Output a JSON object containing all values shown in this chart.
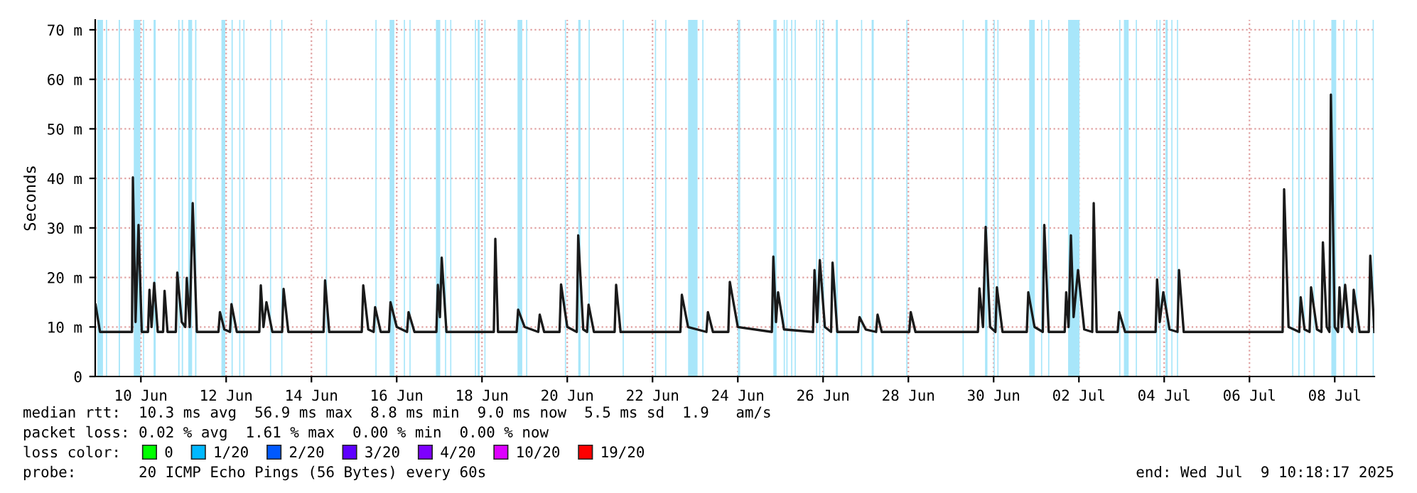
{
  "chart_data": {
    "type": "line",
    "ylabel": "Seconds",
    "legend_title": "loss color:",
    "legend": "bottom left",
    "grid": true,
    "line_style": "solid",
    "xlim": [
      "2025-06-09T10:18",
      "2025-07-09T10:18"
    ],
    "xticks": [
      {
        "value": "2025-06-10T12:00",
        "label": "10 Jun"
      },
      {
        "value": "2025-06-12T12:00",
        "label": "12 Jun"
      },
      {
        "value": "2025-06-14T12:00",
        "label": "14 Jun"
      },
      {
        "value": "2025-06-16T12:00",
        "label": "16 Jun"
      },
      {
        "value": "2025-06-18T12:00",
        "label": "18 Jun"
      },
      {
        "value": "2025-06-20T12:00",
        "label": "20 Jun"
      },
      {
        "value": "2025-06-22T12:00",
        "label": "22 Jun"
      },
      {
        "value": "2025-06-24T12:00",
        "label": "24 Jun"
      },
      {
        "value": "2025-06-26T12:00",
        "label": "26 Jun"
      },
      {
        "value": "2025-06-28T12:00",
        "label": "28 Jun"
      },
      {
        "value": "2025-06-30T12:00",
        "label": "30 Jun"
      },
      {
        "value": "2025-07-02T12:00",
        "label": "02 Jul"
      },
      {
        "value": "2025-07-04T12:00",
        "label": "04 Jul"
      },
      {
        "value": "2025-07-06T12:00",
        "label": "06 Jul"
      },
      {
        "value": "2025-07-08T12:00",
        "label": "08 Jul"
      }
    ],
    "ylim": [
      0,
      72
    ],
    "yticks": [
      0,
      {
        "value": 10,
        "label": "10 m"
      },
      {
        "value": 20,
        "label": "20 m"
      },
      {
        "value": 30,
        "label": "30 m"
      },
      {
        "value": 40,
        "label": "40 m"
      },
      {
        "value": 50,
        "label": "50 m"
      },
      {
        "value": 60,
        "label": "60 m"
      },
      {
        "value": 70,
        "label": "70 m"
      }
    ],
    "series": [
      {
        "color": "#1a1a1a",
        "x": [
          "2025-06-09T10:30",
          "2025-06-09T13:00",
          "2025-06-10T07:00",
          "2025-06-10T07:30",
          "2025-06-10T09:00",
          "2025-06-10T10:40",
          "2025-06-10T12:30",
          "2025-06-10T16:00",
          "2025-06-10T16:50",
          "2025-06-10T18:00",
          "2025-06-10T19:30",
          "2025-06-10T21:30",
          "2025-06-11T00:30",
          "2025-06-11T01:20",
          "2025-06-11T03:00",
          "2025-06-11T07:40",
          "2025-06-11T08:30",
          "2025-06-11T11:00",
          "2025-06-11T13:00",
          "2025-06-11T13:50",
          "2025-06-11T15:30",
          "2025-06-11T17:10",
          "2025-06-11T19:30",
          "2025-06-12T07:40",
          "2025-06-12T08:30",
          "2025-06-12T11:00",
          "2025-06-12T14:10",
          "2025-06-12T15:00",
          "2025-06-12T18:00",
          "2025-06-13T06:40",
          "2025-06-13T07:30",
          "2025-06-13T09:00",
          "2025-06-13T10:40",
          "2025-06-13T14:00",
          "2025-06-13T19:30",
          "2025-06-13T20:20",
          "2025-06-13T23:00",
          "2025-06-14T18:50",
          "2025-06-14T19:40",
          "2025-06-14T22:00",
          "2025-06-15T16:20",
          "2025-06-15T17:10",
          "2025-06-15T20:00",
          "2025-06-15T23:00",
          "2025-06-15T23:50",
          "2025-06-16T03:00",
          "2025-06-16T07:40",
          "2025-06-16T08:30",
          "2025-06-16T12:00",
          "2025-06-16T17:50",
          "2025-06-16T18:40",
          "2025-06-16T22:00",
          "2025-06-17T10:20",
          "2025-06-17T11:10",
          "2025-06-17T12:20",
          "2025-06-17T13:20",
          "2025-06-17T16:00",
          "2025-06-18T18:40",
          "2025-06-18T19:30",
          "2025-06-18T21:00",
          "2025-06-19T07:30",
          "2025-06-19T08:20",
          "2025-06-19T12:00",
          "2025-06-19T19:40",
          "2025-06-19T20:30",
          "2025-06-19T23:00",
          "2025-06-20T07:40",
          "2025-06-20T08:30",
          "2025-06-20T12:00",
          "2025-06-20T17:20",
          "2025-06-20T18:10",
          "2025-06-20T21:00",
          "2025-06-20T23:10",
          "2025-06-21T00:00",
          "2025-06-21T03:00",
          "2025-06-21T14:40",
          "2025-06-21T15:30",
          "2025-06-21T18:00",
          "2025-06-23T03:40",
          "2025-06-23T04:30",
          "2025-06-23T08:00",
          "2025-06-23T18:20",
          "2025-06-23T19:10",
          "2025-06-23T22:00",
          "2025-06-24T06:40",
          "2025-06-24T07:30",
          "2025-06-24T12:00",
          "2025-06-25T07:10",
          "2025-06-25T08:00",
          "2025-06-25T09:30",
          "2025-06-25T10:40",
          "2025-06-25T14:00",
          "2025-06-26T06:20",
          "2025-06-26T07:10",
          "2025-06-26T08:40",
          "2025-06-26T10:10",
          "2025-06-26T13:00",
          "2025-06-26T16:30",
          "2025-06-26T17:20",
          "2025-06-26T20:00",
          "2025-06-27T07:40",
          "2025-06-27T08:30",
          "2025-06-27T12:00",
          "2025-06-27T17:50",
          "2025-06-27T18:40",
          "2025-06-27T21:00",
          "2025-06-28T12:30",
          "2025-06-28T13:20",
          "2025-06-28T16:00",
          "2025-06-30T03:10",
          "2025-06-30T04:00",
          "2025-06-30T06:00",
          "2025-06-30T07:30",
          "2025-06-30T10:00",
          "2025-06-30T13:00",
          "2025-06-30T13:50",
          "2025-06-30T17:00",
          "2025-07-01T06:40",
          "2025-07-01T07:30",
          "2025-07-01T11:00",
          "2025-07-01T15:40",
          "2025-07-01T16:30",
          "2025-07-01T19:00",
          "2025-07-02T04:00",
          "2025-07-02T04:50",
          "2025-07-02T06:10",
          "2025-07-02T07:30",
          "2025-07-02T09:00",
          "2025-07-02T11:30",
          "2025-07-02T15:00",
          "2025-07-02T19:30",
          "2025-07-02T20:20",
          "2025-07-02T22:00",
          "2025-07-03T09:50",
          "2025-07-03T10:40",
          "2025-07-03T14:00",
          "2025-07-04T07:10",
          "2025-07-04T08:00",
          "2025-07-04T09:30",
          "2025-07-04T11:30",
          "2025-07-04T15:00",
          "2025-07-04T19:30",
          "2025-07-04T20:20",
          "2025-07-04T23:00",
          "2025-07-07T06:40",
          "2025-07-07T07:30",
          "2025-07-07T10:00",
          "2025-07-07T16:00",
          "2025-07-07T16:50",
          "2025-07-07T19:00",
          "2025-07-07T21:50",
          "2025-07-07T22:40",
          "2025-07-08T02:00",
          "2025-07-08T04:30",
          "2025-07-08T05:20",
          "2025-07-08T07:30",
          "2025-07-08T09:00",
          "2025-07-08T09:50",
          "2025-07-08T12:00",
          "2025-07-08T13:50",
          "2025-07-08T14:40",
          "2025-07-08T16:00",
          "2025-07-08T17:50",
          "2025-07-08T20:00",
          "2025-07-08T21:50",
          "2025-07-08T22:40",
          "2025-07-09T02:00",
          "2025-07-09T07:10",
          "2025-07-09T08:00",
          "2025-07-09T10:18"
        ],
        "values": [
          14.5,
          9,
          9,
          40.2,
          11,
          30.6,
          9,
          9,
          17.5,
          10,
          18.9,
          9,
          9,
          17.3,
          9,
          9,
          21,
          11,
          10,
          19.9,
          10,
          35,
          9,
          9,
          13,
          9.5,
          9,
          14.6,
          9,
          9,
          18.4,
          10,
          15,
          9,
          9,
          17.7,
          9,
          9,
          19.4,
          9,
          9,
          18.4,
          9.5,
          9,
          14,
          9,
          9,
          15,
          10,
          9,
          13,
          9,
          9,
          18.5,
          12,
          24,
          9,
          9,
          27.8,
          9,
          9,
          13.5,
          10,
          9,
          12.5,
          9,
          9,
          18.6,
          10,
          9,
          28.5,
          9.5,
          9,
          14.5,
          9,
          9,
          18.5,
          9,
          9,
          16.5,
          10,
          9,
          13,
          9,
          9,
          19.1,
          10,
          9,
          24.2,
          11,
          17,
          9.5,
          9,
          21.5,
          11,
          23.5,
          10,
          9,
          23,
          9,
          9,
          12,
          9.5,
          9,
          12.5,
          9,
          9,
          13,
          9,
          9,
          17.8,
          10,
          30.2,
          10,
          9,
          18,
          9,
          9,
          17,
          10,
          9,
          30.6,
          9,
          9,
          17,
          10,
          28.5,
          12,
          21.5,
          9.5,
          9,
          35,
          9,
          9,
          13,
          9,
          9,
          19.6,
          11,
          17,
          9.5,
          9,
          21.5,
          9,
          9,
          37.8,
          10,
          9,
          16,
          9.5,
          9,
          18,
          9.5,
          9,
          27.1,
          10,
          9,
          56.9,
          10,
          9,
          18,
          10,
          18.5,
          10,
          9,
          17.5,
          9,
          9,
          24.4,
          9.0
        ]
      },
      {
        "type": "scatter",
        "name": "0",
        "color": "#00ff00"
      },
      {
        "type": "scatter",
        "name": "1/20",
        "color": "#00b8ff"
      },
      {
        "type": "scatter",
        "name": "2/20",
        "color": "#0059ff"
      },
      {
        "type": "scatter",
        "name": "3/20",
        "color": "#5e00ff"
      },
      {
        "type": "scatter",
        "name": "4/20",
        "color": "#7e00ff"
      },
      {
        "type": "scatter",
        "name": "10/20",
        "color": "#dd00ff"
      },
      {
        "type": "scatter",
        "name": "19/20",
        "color": "#ff0000"
      }
    ],
    "bands": [
      {
        "axis": "x",
        "from": "2025-06-09T11:30",
        "to": "2025-06-09T14:40",
        "color": "#a8e6fa"
      },
      {
        "axis": "x",
        "from": "2025-06-09T16:20",
        "to": "2025-06-09T17:00",
        "color": "#a8e6fa"
      },
      {
        "axis": "x",
        "from": "2025-06-09T23:30",
        "to": "2025-06-10T00:15",
        "color": "#a8e6fa"
      },
      {
        "axis": "x",
        "from": "2025-06-10T08:00",
        "to": "2025-06-10T11:45",
        "color": "#a8e6fa"
      },
      {
        "axis": "x",
        "from": "2025-06-10T13:10",
        "to": "2025-06-10T13:50",
        "color": "#a8e6fa"
      },
      {
        "axis": "x",
        "from": "2025-06-10T19:10",
        "to": "2025-06-10T20:20",
        "color": "#a8e6fa"
      },
      {
        "axis": "x",
        "from": "2025-06-11T09:00",
        "to": "2025-06-11T09:45",
        "color": "#a8e6fa"
      },
      {
        "axis": "x",
        "from": "2025-06-11T11:00",
        "to": "2025-06-11T11:45",
        "color": "#a8e6fa"
      },
      {
        "axis": "x",
        "from": "2025-06-11T14:40",
        "to": "2025-06-11T16:50",
        "color": "#a8e6fa"
      },
      {
        "axis": "x",
        "from": "2025-06-11T18:30",
        "to": "2025-06-11T19:15",
        "color": "#a8e6fa"
      },
      {
        "axis": "x",
        "from": "2025-06-12T09:20",
        "to": "2025-06-12T11:30",
        "color": "#a8e6fa"
      },
      {
        "axis": "x",
        "from": "2025-06-12T15:00",
        "to": "2025-06-12T15:45",
        "color": "#a8e6fa"
      },
      {
        "axis": "x",
        "from": "2025-06-12T19:20",
        "to": "2025-06-12T20:00",
        "color": "#a8e6fa"
      },
      {
        "axis": "x",
        "from": "2025-06-12T21:40",
        "to": "2025-06-12T22:20",
        "color": "#a8e6fa"
      },
      {
        "axis": "x",
        "from": "2025-06-13T12:40",
        "to": "2025-06-13T13:20",
        "color": "#a8e6fa"
      },
      {
        "axis": "x",
        "from": "2025-06-13T19:00",
        "to": "2025-06-13T19:40",
        "color": "#a8e6fa"
      },
      {
        "axis": "x",
        "from": "2025-06-14T20:10",
        "to": "2025-06-14T20:50",
        "color": "#a8e6fa"
      },
      {
        "axis": "x",
        "from": "2025-06-16T00:00",
        "to": "2025-06-16T00:40",
        "color": "#a8e6fa"
      },
      {
        "axis": "x",
        "from": "2025-06-16T08:00",
        "to": "2025-06-16T10:40",
        "color": "#a8e6fa"
      },
      {
        "axis": "x",
        "from": "2025-06-16T16:00",
        "to": "2025-06-16T16:40",
        "color": "#a8e6fa"
      },
      {
        "axis": "x",
        "from": "2025-06-16T19:10",
        "to": "2025-06-16T19:50",
        "color": "#a8e6fa"
      },
      {
        "axis": "x",
        "from": "2025-06-17T10:05",
        "to": "2025-06-17T12:30",
        "color": "#a8e6fa"
      },
      {
        "axis": "x",
        "from": "2025-06-17T15:10",
        "to": "2025-06-17T15:50",
        "color": "#a8e6fa"
      },
      {
        "axis": "x",
        "from": "2025-06-17T18:05",
        "to": "2025-06-17T18:45",
        "color": "#a8e6fa"
      },
      {
        "axis": "x",
        "from": "2025-06-18T08:00",
        "to": "2025-06-18T08:40",
        "color": "#a8e6fa"
      },
      {
        "axis": "x",
        "from": "2025-06-18T09:35",
        "to": "2025-06-18T10:40",
        "color": "#a8e6fa"
      },
      {
        "axis": "x",
        "from": "2025-06-18T13:20",
        "to": "2025-06-18T14:00",
        "color": "#a8e6fa"
      },
      {
        "axis": "x",
        "from": "2025-06-19T08:00",
        "to": "2025-06-19T10:40",
        "color": "#a8e6fa"
      },
      {
        "axis": "x",
        "from": "2025-06-19T12:50",
        "to": "2025-06-19T13:30",
        "color": "#a8e6fa"
      },
      {
        "axis": "x",
        "from": "2025-06-20T10:40",
        "to": "2025-06-20T11:20",
        "color": "#a8e6fa"
      },
      {
        "axis": "x",
        "from": "2025-06-20T18:10",
        "to": "2025-06-20T19:30",
        "color": "#a8e6fa"
      },
      {
        "axis": "x",
        "from": "2025-06-21T00:00",
        "to": "2025-06-21T00:40",
        "color": "#a8e6fa"
      },
      {
        "axis": "x",
        "from": "2025-06-21T19:10",
        "to": "2025-06-21T19:50",
        "color": "#a8e6fa"
      },
      {
        "axis": "x",
        "from": "2025-06-22T13:20",
        "to": "2025-06-22T14:00",
        "color": "#a8e6fa"
      },
      {
        "axis": "x",
        "from": "2025-06-22T19:10",
        "to": "2025-06-22T19:50",
        "color": "#a8e6fa"
      },
      {
        "axis": "x",
        "from": "2025-06-23T08:00",
        "to": "2025-06-23T13:20",
        "color": "#a8e6fa"
      },
      {
        "axis": "x",
        "from": "2025-06-23T16:00",
        "to": "2025-06-23T16:40",
        "color": "#a8e6fa"
      },
      {
        "axis": "x",
        "from": "2025-06-24T12:00",
        "to": "2025-06-24T13:20",
        "color": "#a8e6fa"
      },
      {
        "axis": "x",
        "from": "2025-06-25T08:00",
        "to": "2025-06-25T09:50",
        "color": "#a8e6fa"
      },
      {
        "axis": "x",
        "from": "2025-06-25T13:50",
        "to": "2025-06-25T14:30",
        "color": "#a8e6fa"
      },
      {
        "axis": "x",
        "from": "2025-06-25T15:20",
        "to": "2025-06-25T16:00",
        "color": "#a8e6fa"
      },
      {
        "axis": "x",
        "from": "2025-06-25T18:00",
        "to": "2025-06-25T18:40",
        "color": "#a8e6fa"
      },
      {
        "axis": "x",
        "from": "2025-06-25T20:00",
        "to": "2025-06-25T20:40",
        "color": "#a8e6fa"
      },
      {
        "axis": "x",
        "from": "2025-06-26T08:00",
        "to": "2025-06-26T08:40",
        "color": "#a8e6fa"
      },
      {
        "axis": "x",
        "from": "2025-06-26T09:45",
        "to": "2025-06-26T10:25",
        "color": "#a8e6fa"
      },
      {
        "axis": "x",
        "from": "2025-06-26T12:00",
        "to": "2025-06-26T12:40",
        "color": "#a8e6fa"
      },
      {
        "axis": "x",
        "from": "2025-06-26T19:10",
        "to": "2025-06-26T20:20",
        "color": "#a8e6fa"
      },
      {
        "axis": "x",
        "from": "2025-06-27T09:20",
        "to": "2025-06-27T10:00",
        "color": "#a8e6fa"
      },
      {
        "axis": "x",
        "from": "2025-06-27T15:20",
        "to": "2025-06-27T16:30",
        "color": "#a8e6fa"
      },
      {
        "axis": "x",
        "from": "2025-06-28T10:50",
        "to": "2025-06-28T11:30",
        "color": "#a8e6fa"
      },
      {
        "axis": "x",
        "from": "2025-06-29T18:30",
        "to": "2025-06-29T19:10",
        "color": "#a8e6fa"
      },
      {
        "axis": "x",
        "from": "2025-06-30T07:10",
        "to": "2025-06-30T08:30",
        "color": "#a8e6fa"
      },
      {
        "axis": "x",
        "from": "2025-06-30T12:00",
        "to": "2025-06-30T12:40",
        "color": "#a8e6fa"
      },
      {
        "axis": "x",
        "from": "2025-06-30T14:05",
        "to": "2025-06-30T14:45",
        "color": "#a8e6fa"
      },
      {
        "axis": "x",
        "from": "2025-07-01T08:00",
        "to": "2025-07-01T11:10",
        "color": "#a8e6fa"
      },
      {
        "axis": "x",
        "from": "2025-07-01T14:40",
        "to": "2025-07-01T15:20",
        "color": "#a8e6fa"
      },
      {
        "axis": "x",
        "from": "2025-07-01T18:40",
        "to": "2025-07-01T19:20",
        "color": "#a8e6fa"
      },
      {
        "axis": "x",
        "from": "2025-07-02T05:55",
        "to": "2025-07-02T12:20",
        "color": "#a8e6fa"
      },
      {
        "axis": "x",
        "from": "2025-07-03T10:40",
        "to": "2025-07-03T11:20",
        "color": "#a8e6fa"
      },
      {
        "axis": "x",
        "from": "2025-07-03T13:20",
        "to": "2025-07-03T16:00",
        "color": "#a8e6fa"
      },
      {
        "axis": "x",
        "from": "2025-07-03T20:00",
        "to": "2025-07-03T20:40",
        "color": "#a8e6fa"
      },
      {
        "axis": "x",
        "from": "2025-07-04T07:30",
        "to": "2025-07-04T08:10",
        "color": "#a8e6fa"
      },
      {
        "axis": "x",
        "from": "2025-07-04T09:20",
        "to": "2025-07-04T10:00",
        "color": "#a8e6fa"
      },
      {
        "axis": "x",
        "from": "2025-07-04T12:45",
        "to": "2025-07-04T14:00",
        "color": "#a8e6fa"
      },
      {
        "axis": "x",
        "from": "2025-07-04T16:00",
        "to": "2025-07-04T16:40",
        "color": "#a8e6fa"
      },
      {
        "axis": "x",
        "from": "2025-07-04T19:10",
        "to": "2025-07-04T19:50",
        "color": "#a8e6fa"
      },
      {
        "axis": "x",
        "from": "2025-07-07T12:00",
        "to": "2025-07-07T12:40",
        "color": "#a8e6fa"
      },
      {
        "axis": "x",
        "from": "2025-07-07T15:30",
        "to": "2025-07-07T16:10",
        "color": "#a8e6fa"
      },
      {
        "axis": "x",
        "from": "2025-07-07T18:40",
        "to": "2025-07-07T19:20",
        "color": "#a8e6fa"
      },
      {
        "axis": "x",
        "from": "2025-07-08T00:00",
        "to": "2025-07-08T00:40",
        "color": "#a8e6fa"
      },
      {
        "axis": "x",
        "from": "2025-07-08T10:05",
        "to": "2025-07-08T12:50",
        "color": "#a8e6fa"
      },
      {
        "axis": "x",
        "from": "2025-07-08T16:50",
        "to": "2025-07-08T17:30",
        "color": "#a8e6fa"
      },
      {
        "axis": "x",
        "from": "2025-07-09T00:00",
        "to": "2025-07-09T00:40",
        "color": "#a8e6fa"
      },
      {
        "axis": "x",
        "from": "2025-07-09T09:20",
        "to": "2025-07-09T10:00",
        "color": "#a8e6fa"
      }
    ],
    "annotations": [
      "median rtt:  10.3 ms avg  56.9 ms max  8.8 ms min  9.0 ms now  5.5 ms sd  1.9   am/s",
      "packet loss: 0.02 % avg  1.61 % max  0.00 % min  0.00 % now",
      "probe:       20 ICMP Echo Pings (56 Bytes) every 60s",
      "end: Wed Jul  9 10:18:17 2025"
    ]
  }
}
